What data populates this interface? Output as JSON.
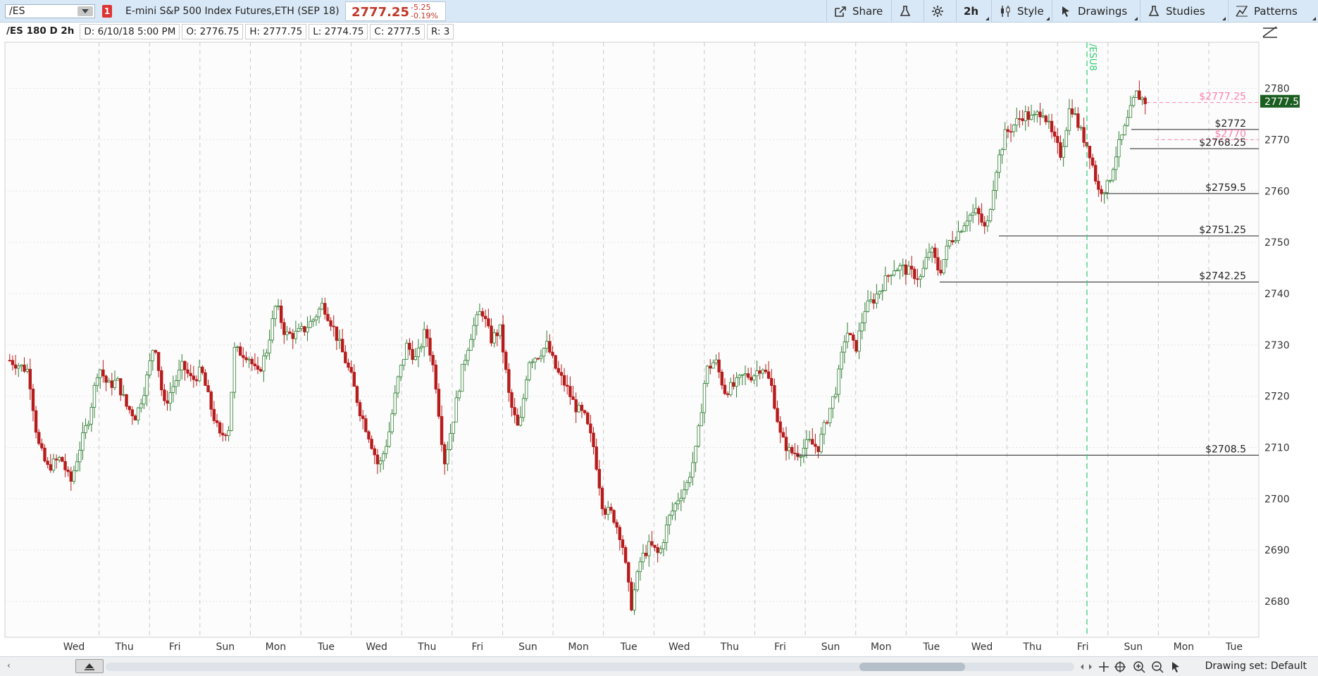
{
  "toolbar": {
    "symbol": "/ES",
    "link_number": "1",
    "description": "E-mini S&P 500 Index Futures,ETH (SEP 18)",
    "last_price": "2777.25",
    "change": "-5.25",
    "change_pct": "-0.19%",
    "share_label": "Share",
    "timeframe_label": "2h",
    "style_label": "Style",
    "drawings_label": "Drawings",
    "studies_label": "Studies",
    "patterns_label": "Patterns"
  },
  "info": {
    "title": "/ES 180 D 2h",
    "date": "D: 6/10/18 5:00 PM",
    "open": "O: 2776.75",
    "high": "H: 2777.75",
    "low": "L: 2774.75",
    "close": "C: 2777.5",
    "range": "R: 3"
  },
  "footer": {
    "drawing_set": "Drawing set: Default"
  },
  "colors": {
    "up": "#2e7d32",
    "down": "#b71c1c",
    "current_price_bg": "#1b5e20",
    "pink": "#ff80ab",
    "expiry_line": "#2ecc71"
  },
  "chart_data": {
    "type": "candlestick",
    "symbol": "/ES",
    "ylim": [
      2673,
      2789
    ],
    "y_ticks": [
      2680,
      2690,
      2700,
      2710,
      2720,
      2730,
      2740,
      2750,
      2760,
      2770,
      2780
    ],
    "x_tick_labels": [
      "Wed",
      "Thu",
      "Fri",
      "Sun",
      "Mon",
      "Tue",
      "Wed",
      "Thu",
      "Fri",
      "Sun",
      "Mon",
      "Tue",
      "Wed",
      "Thu",
      "Fri",
      "Sun",
      "Mon",
      "Tue",
      "Wed",
      "Thu",
      "Fri",
      "Sun",
      "Mon",
      "Tue"
    ],
    "current_price": 2777.5,
    "expiry_label": "/ESU8",
    "price_levels": [
      {
        "label": "$2772",
        "value": 2772,
        "style": "solid"
      },
      {
        "label": "$2768.25",
        "value": 2768.25,
        "style": "solid"
      },
      {
        "label": "$2759.5",
        "value": 2759.5,
        "style": "solid"
      },
      {
        "label": "$2751.25",
        "value": 2751.25,
        "style": "solid"
      },
      {
        "label": "$2742.25",
        "value": 2742.25,
        "style": "solid"
      },
      {
        "label": "$2708.5",
        "value": 2708.5,
        "style": "solid"
      },
      {
        "label": "$2777.25",
        "value": 2777.25,
        "style": "dashed-pink"
      },
      {
        "label": "$2770",
        "value": 2770,
        "style": "dashed-pink"
      }
    ],
    "close_path": [
      [
        0,
        2727
      ],
      [
        8,
        2725
      ],
      [
        12,
        2711
      ],
      [
        16,
        2706
      ],
      [
        22,
        2708
      ],
      [
        26,
        2703
      ],
      [
        30,
        2710
      ],
      [
        34,
        2716
      ],
      [
        38,
        2726
      ],
      [
        42,
        2722
      ],
      [
        46,
        2723
      ],
      [
        50,
        2718
      ],
      [
        54,
        2716
      ],
      [
        58,
        2722
      ],
      [
        62,
        2731
      ],
      [
        66,
        2718
      ],
      [
        70,
        2722
      ],
      [
        74,
        2726
      ],
      [
        78,
        2723
      ],
      [
        82,
        2725
      ],
      [
        86,
        2718
      ],
      [
        90,
        2712
      ],
      [
        94,
        2714
      ],
      [
        96,
        2729
      ],
      [
        102,
        2728
      ],
      [
        106,
        2724
      ],
      [
        110,
        2729
      ],
      [
        114,
        2738
      ],
      [
        118,
        2732
      ],
      [
        122,
        2732
      ],
      [
        126,
        2733
      ],
      [
        130,
        2735
      ],
      [
        134,
        2738
      ],
      [
        138,
        2734
      ],
      [
        142,
        2729
      ],
      [
        146,
        2724
      ],
      [
        150,
        2717
      ],
      [
        154,
        2712
      ],
      [
        158,
        2706
      ],
      [
        162,
        2712
      ],
      [
        166,
        2723
      ],
      [
        170,
        2730
      ],
      [
        174,
        2727
      ],
      [
        178,
        2733
      ],
      [
        182,
        2724
      ],
      [
        186,
        2707
      ],
      [
        190,
        2716
      ],
      [
        194,
        2726
      ],
      [
        198,
        2733
      ],
      [
        202,
        2737
      ],
      [
        206,
        2731
      ],
      [
        210,
        2733
      ],
      [
        214,
        2719
      ],
      [
        218,
        2713
      ],
      [
        222,
        2727
      ],
      [
        226,
        2728
      ],
      [
        230,
        2730
      ],
      [
        234,
        2725
      ],
      [
        238,
        2722
      ],
      [
        242,
        2718
      ],
      [
        246,
        2716
      ],
      [
        250,
        2710
      ],
      [
        254,
        2698
      ],
      [
        258,
        2697
      ],
      [
        262,
        2692
      ],
      [
        266,
        2679
      ],
      [
        270,
        2688
      ],
      [
        274,
        2691
      ],
      [
        278,
        2689
      ],
      [
        282,
        2696
      ],
      [
        286,
        2700
      ],
      [
        290,
        2703
      ],
      [
        294,
        2710
      ],
      [
        298,
        2725
      ],
      [
        302,
        2727
      ],
      [
        306,
        2721
      ],
      [
        310,
        2722
      ],
      [
        314,
        2724
      ],
      [
        318,
        2724
      ],
      [
        322,
        2726
      ],
      [
        326,
        2722
      ],
      [
        330,
        2712
      ],
      [
        334,
        2709
      ],
      [
        338,
        2709
      ],
      [
        342,
        2711
      ],
      [
        346,
        2710
      ],
      [
        350,
        2716
      ],
      [
        354,
        2722
      ],
      [
        358,
        2733
      ],
      [
        362,
        2729
      ],
      [
        366,
        2737
      ],
      [
        370,
        2739
      ],
      [
        374,
        2742
      ],
      [
        378,
        2745
      ],
      [
        382,
        2745
      ],
      [
        386,
        2744
      ],
      [
        390,
        2743
      ],
      [
        394,
        2749
      ],
      [
        398,
        2744
      ],
      [
        402,
        2750
      ],
      [
        406,
        2752
      ],
      [
        410,
        2755
      ],
      [
        414,
        2756
      ],
      [
        418,
        2752
      ],
      [
        422,
        2764
      ],
      [
        426,
        2771
      ],
      [
        430,
        2773
      ],
      [
        434,
        2775
      ],
      [
        438,
        2774
      ],
      [
        442,
        2776
      ],
      [
        446,
        2771
      ],
      [
        450,
        2767
      ],
      [
        454,
        2777
      ],
      [
        458,
        2772
      ],
      [
        462,
        2768
      ],
      [
        466,
        2760
      ],
      [
        470,
        2761
      ],
      [
        474,
        2768
      ],
      [
        478,
        2773
      ],
      [
        482,
        2779
      ],
      [
        486,
        2777.5
      ]
    ]
  }
}
